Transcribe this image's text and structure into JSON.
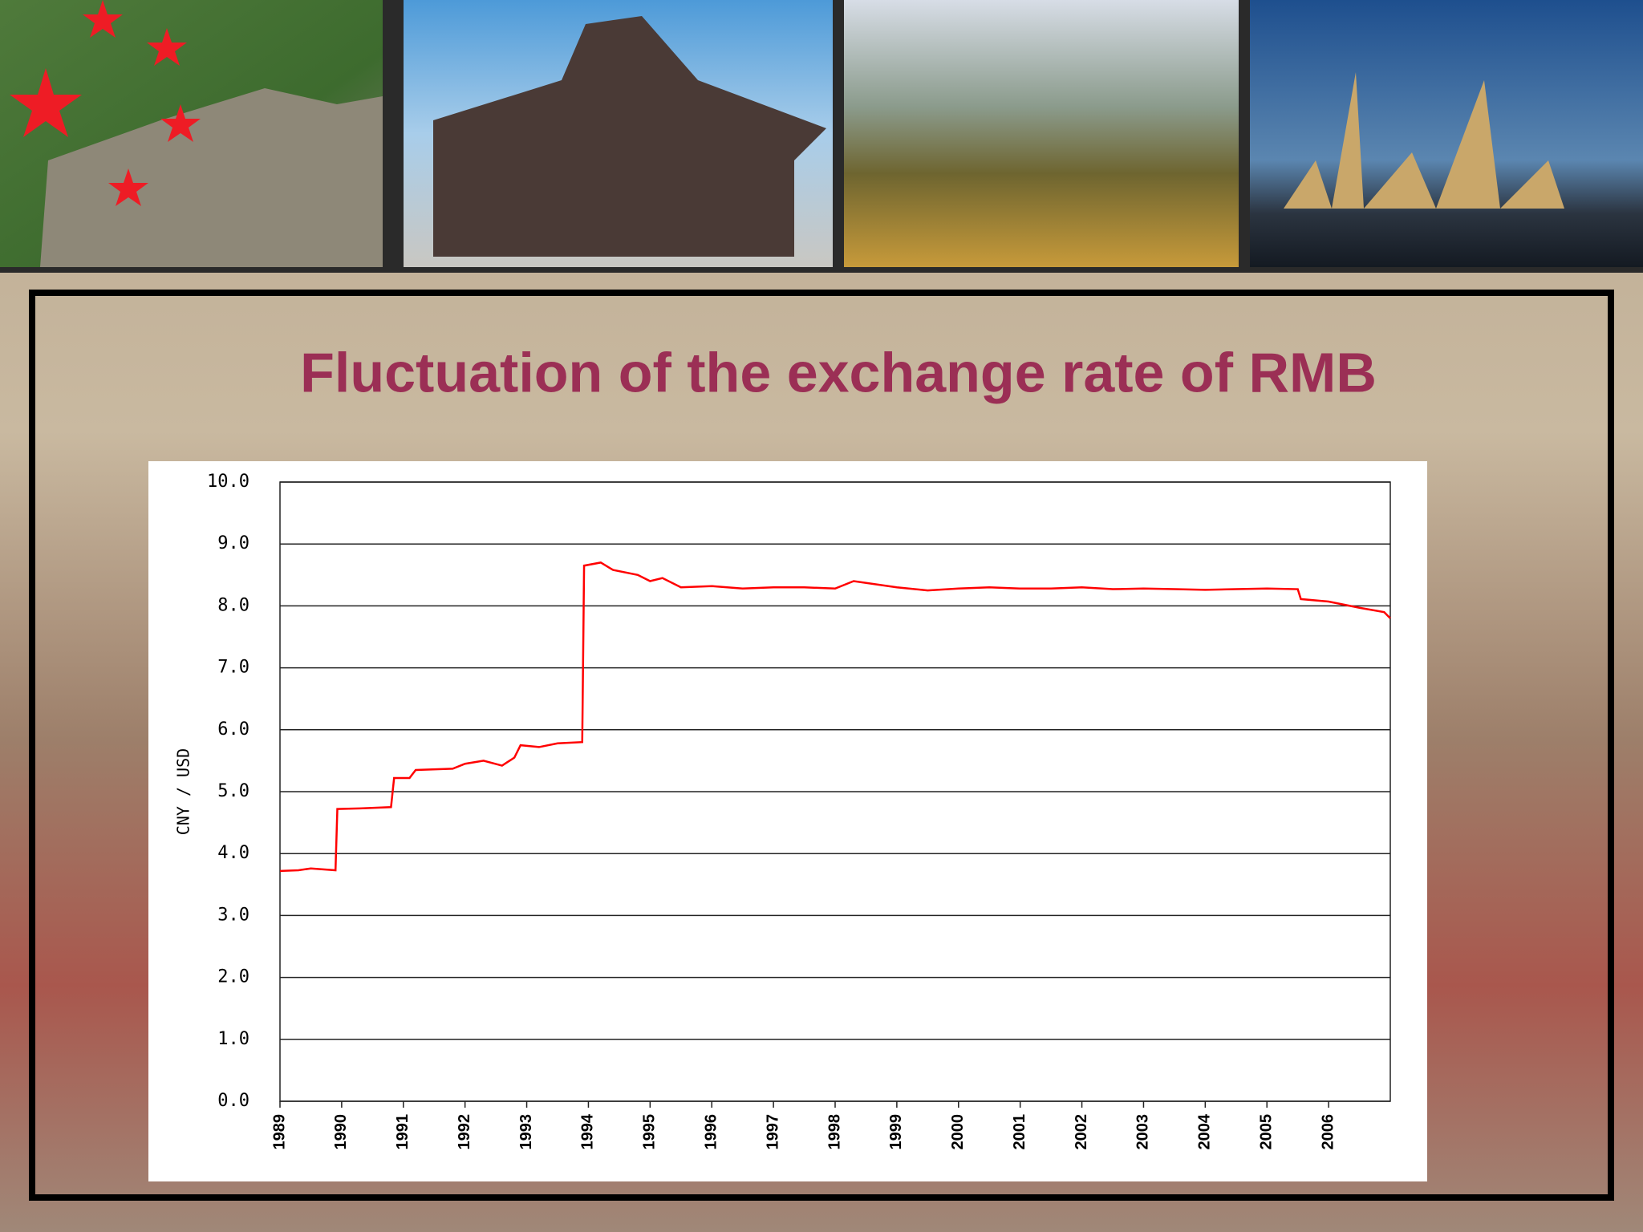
{
  "chart_data": {
    "type": "line",
    "title": "Fluctuation of the exchange rate of RMB",
    "ylabel": "CNY / USD",
    "color": "#ff0000",
    "x": [
      1989.0,
      1989.3,
      1989.5,
      1989.9,
      1989.93,
      1990.3,
      1990.8,
      1990.85,
      1991.1,
      1991.2,
      1991.8,
      1992.0,
      1992.3,
      1992.6,
      1992.8,
      1992.9,
      1993.2,
      1993.5,
      1993.9,
      1993.93,
      1994.2,
      1994.4,
      1994.8,
      1995.0,
      1995.2,
      1995.5,
      1996.0,
      1996.5,
      1997.0,
      1997.5,
      1998.0,
      1998.3,
      1999.0,
      1999.5,
      2000.0,
      2000.5,
      2001.0,
      2001.5,
      2002.0,
      2002.5,
      2003.0,
      2003.5,
      2004.0,
      2004.5,
      2005.0,
      2005.5,
      2005.55,
      2006.0,
      2006.5,
      2006.9,
      2007.0
    ],
    "values": [
      3.72,
      3.73,
      3.76,
      3.73,
      4.72,
      4.73,
      4.75,
      5.22,
      5.22,
      5.35,
      5.37,
      5.45,
      5.5,
      5.42,
      5.55,
      5.75,
      5.72,
      5.78,
      5.8,
      8.65,
      8.7,
      8.58,
      8.5,
      8.4,
      8.45,
      8.3,
      8.32,
      8.28,
      8.3,
      8.3,
      8.28,
      8.4,
      8.3,
      8.25,
      8.28,
      8.3,
      8.28,
      8.28,
      8.3,
      8.27,
      8.28,
      8.27,
      8.26,
      8.27,
      8.28,
      8.27,
      8.11,
      8.07,
      7.97,
      7.9,
      7.8
    ],
    "xlim": [
      1989,
      2007
    ],
    "xticks": [
      1989,
      1990,
      1991,
      1992,
      1993,
      1994,
      1995,
      1996,
      1997,
      1998,
      1999,
      2000,
      2001,
      2002,
      2003,
      2004,
      2005,
      2006
    ],
    "ylim": [
      0,
      10
    ],
    "yticks": [
      {
        "value": 0,
        "label": "0.0"
      },
      {
        "value": 1,
        "label": "1.0"
      },
      {
        "value": 2,
        "label": "2.0"
      },
      {
        "value": 3,
        "label": "3.0"
      },
      {
        "value": 4,
        "label": "4.0"
      },
      {
        "value": 5,
        "label": "5.0"
      },
      {
        "value": 6,
        "label": "6.0"
      },
      {
        "value": 7,
        "label": "7.0"
      },
      {
        "value": 8,
        "label": "8.0"
      },
      {
        "value": 9,
        "label": "9.0"
      },
      {
        "value": 10,
        "label": "10.0"
      }
    ],
    "grid": true
  }
}
